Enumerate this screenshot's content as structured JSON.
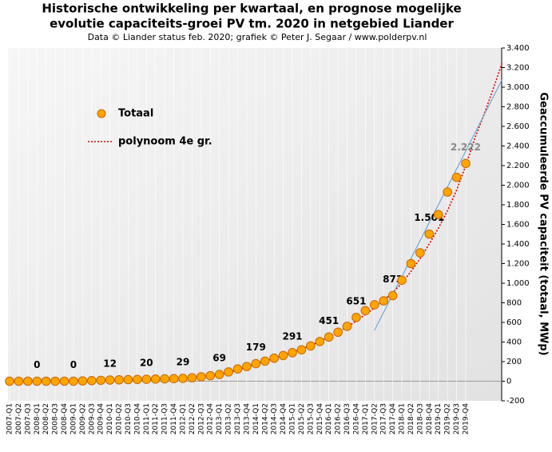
{
  "chart_data": {
    "type": "scatter-line",
    "title": [
      "Historische  ontwikkeling  per kwartaal, en prognose mogelijke",
      "evolutie  capaciteits-groei  PV tm. 2020 in netgebied Liander"
    ],
    "subtitle": "Data © Liander status feb. 2020; grafiek © Peter J. Segaar / www.polderpv.nl",
    "y_label": "Geaccumuleerde  PV  capaciteit  (totaal, MWp)",
    "categories": [
      "2007-Q1",
      "2007-Q2",
      "2007-Q3",
      "2008-Q1",
      "2008-Q2",
      "2008-Q3",
      "2008-Q4",
      "2009-Q1",
      "2009-Q2",
      "2009-Q3",
      "2009-Q4",
      "2010-Q1",
      "2010-Q2",
      "2010-Q3",
      "2010-Q4",
      "2011-Q1",
      "2011-Q2",
      "2011-Q3",
      "2011-Q4",
      "2012-Q1",
      "2012-Q2",
      "2012-Q3",
      "2012-Q4",
      "2013-Q1",
      "2013-Q2",
      "2013-Q3",
      "2013-Q4",
      "2014-Q1",
      "2014-Q2",
      "2014-Q3",
      "2014-Q4",
      "2015-Q1",
      "2015-Q2",
      "2015-Q3",
      "2015-Q4",
      "2016-Q1",
      "2016-Q2",
      "2016-Q3",
      "2016-Q4",
      "2017-Q1",
      "2017-Q2",
      "2017-Q3",
      "2017-Q4",
      "2018-Q1",
      "2018-Q2",
      "2018-Q3",
      "2018-Q4",
      "2019-Q1",
      "2019-Q2",
      "2019-Q3",
      "2019-Q4",
      null,
      null,
      null,
      null
    ],
    "series": [
      {
        "name": "Totaal",
        "color": "#ffa500",
        "marker": true,
        "values": [
          0,
          0,
          0,
          0,
          0,
          0,
          0,
          0,
          3,
          6,
          9,
          12,
          14,
          16,
          18,
          20,
          22,
          24,
          26,
          29,
          35,
          45,
          56,
          69,
          95,
          125,
          150,
          179,
          205,
          235,
          262,
          291,
          320,
          360,
          405,
          451,
          500,
          560,
          651,
          720,
          780,
          820,
          873,
          1030,
          1200,
          1310,
          1501,
          1700,
          1930,
          2080,
          2222,
          null,
          null,
          null,
          null
        ],
        "value_labels": [
          null,
          null,
          null,
          "0",
          null,
          null,
          null,
          "0",
          null,
          null,
          null,
          "12",
          null,
          null,
          null,
          "20",
          null,
          null,
          null,
          "29",
          null,
          null,
          null,
          "69",
          null,
          null,
          null,
          "179",
          null,
          null,
          null,
          "291",
          null,
          null,
          null,
          "451",
          null,
          null,
          "651",
          null,
          null,
          null,
          "873",
          null,
          null,
          null,
          "1.501",
          null,
          null,
          null,
          "2.222",
          null,
          null,
          null,
          null
        ]
      },
      {
        "name": "polynoom 4e gr.",
        "color": "#e00000",
        "dotted": true,
        "values": [
          -10,
          -8,
          -6,
          -4,
          -2,
          0,
          2,
          4,
          6,
          8,
          10,
          12,
          14,
          16,
          18,
          20,
          22,
          25,
          28,
          32,
          38,
          46,
          56,
          70,
          90,
          115,
          145,
          175,
          205,
          235,
          265,
          295,
          330,
          365,
          405,
          450,
          500,
          555,
          615,
          680,
          750,
          825,
          905,
          1000,
          1120,
          1250,
          1400,
          1560,
          1740,
          1950,
          2200,
          2480,
          2720,
          2980,
          3250
        ]
      },
      {
        "color": "#5b9bd5",
        "values": [
          null,
          null,
          null,
          null,
          null,
          null,
          null,
          null,
          null,
          null,
          null,
          null,
          null,
          null,
          null,
          null,
          null,
          null,
          null,
          null,
          null,
          null,
          null,
          null,
          null,
          null,
          null,
          null,
          null,
          null,
          null,
          null,
          null,
          null,
          null,
          null,
          null,
          null,
          null,
          null,
          520,
          null,
          null,
          null,
          null,
          null,
          null,
          null,
          null,
          null,
          null,
          null,
          null,
          null,
          3080
        ]
      }
    ],
    "ylim": [
      -200,
      3400
    ],
    "yticks": [
      -200,
      0,
      200,
      400,
      600,
      800,
      {
        "value": 1000,
        "label": "1.000"
      },
      {
        "value": 1200,
        "label": "1.200"
      },
      {
        "value": 1400,
        "label": "1.400"
      },
      {
        "value": 1600,
        "label": "1.600"
      },
      {
        "value": 1800,
        "label": "1.800"
      },
      {
        "value": 2000,
        "label": "2.000"
      },
      {
        "value": 2200,
        "label": "2.200"
      },
      {
        "value": 2400,
        "label": "2.400"
      },
      {
        "value": 2600,
        "label": "2.600"
      },
      {
        "value": 2800,
        "label": "2.800"
      },
      {
        "value": 3000,
        "label": "3.000"
      },
      {
        "value": 3200,
        "label": "3.200"
      },
      {
        "value": 3400,
        "label": "3.400"
      }
    ],
    "y_axis_side": "right",
    "legend": "upper left"
  }
}
